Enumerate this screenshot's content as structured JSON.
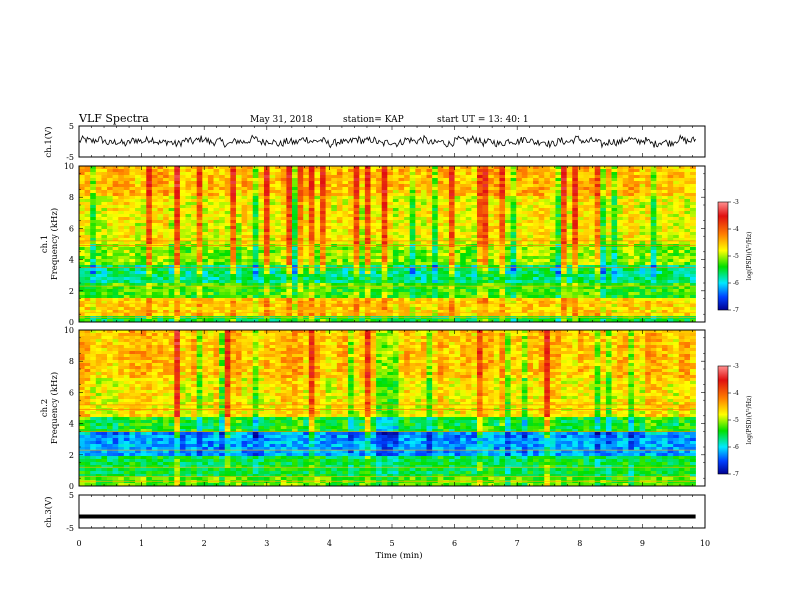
{
  "header": {
    "title": "VLF Spectra",
    "date": "May 31, 2018",
    "station": "station= KAP",
    "start": "start  UT =   13: 40: 1"
  },
  "panels": {
    "ch1_wave": {
      "ylabel": "ch.1(V)",
      "ticks": [
        "5",
        "-5"
      ]
    },
    "ch1_spec": {
      "ylabel_top": "ch.1",
      "ylabel": "Frequency (kHz)",
      "ticks": [
        "10",
        "8",
        "6",
        "4",
        "2",
        "0"
      ]
    },
    "ch2_spec": {
      "ylabel_top": "ch.2",
      "ylabel": "Frequency (kHz)",
      "ticks": [
        "10",
        "8",
        "6",
        "4",
        "2",
        "0"
      ]
    },
    "ch3_wave": {
      "ylabel": "ch.3(V)",
      "ticks": [
        "5",
        "-5"
      ]
    }
  },
  "xaxis": {
    "label": "Time (min)",
    "ticks": [
      "0",
      "1",
      "2",
      "3",
      "4",
      "5",
      "6",
      "7",
      "8",
      "9",
      "10"
    ]
  },
  "colorbar": {
    "label": "log(PSD)(V²/Hz)",
    "ticks": [
      "-3",
      "-4",
      "-5",
      "-6",
      "-7"
    ],
    "colors": [
      "#ff9090",
      "#e01010",
      "#ff8000",
      "#ffff00",
      "#00e000",
      "#00e8ff",
      "#0040ff",
      "#000090"
    ]
  },
  "chart_data": [
    {
      "type": "line",
      "title": "VLF Spectra",
      "ylabel": "ch.1(V)",
      "xlabel": "Time (min)",
      "xlim": [
        0,
        10
      ],
      "ylim": [
        -5,
        5
      ],
      "series": [
        {
          "x_range": [
            0,
            9.85
          ],
          "mean": 0,
          "approx_amplitude": 1.5
        }
      ]
    },
    {
      "type": "heatmap",
      "ylabel": "Frequency (kHz)",
      "xlim": [
        0,
        10
      ],
      "ylim": [
        0,
        10
      ],
      "clim": [
        -7,
        -3
      ],
      "data_x_range": [
        0,
        9.85
      ],
      "freq_bands_khz": [
        {
          "range": [
            8,
            10
          ],
          "log_psd": -4.5
        },
        {
          "range": [
            5,
            8
          ],
          "log_psd": -4.8
        },
        {
          "range": [
            3.6,
            5
          ],
          "log_psd": -5.1
        },
        {
          "range": [
            2.5,
            3.6
          ],
          "log_psd": -5.7
        },
        {
          "range": [
            1.5,
            2.5
          ],
          "log_psd": -5.3
        },
        {
          "range": [
            0.3,
            1.5
          ],
          "log_psd": -4.6
        },
        {
          "range": [
            0,
            0.3
          ],
          "log_psd": -5.5
        }
      ]
    },
    {
      "type": "heatmap",
      "ylabel": "Frequency (kHz)",
      "xlim": [
        0,
        10
      ],
      "ylim": [
        0,
        10
      ],
      "clim": [
        -7,
        -3
      ],
      "data_x_range": [
        0,
        9.85
      ],
      "freq_bands_khz": [
        {
          "range": [
            7,
            10
          ],
          "log_psd": -4.5
        },
        {
          "range": [
            4.5,
            7
          ],
          "log_psd": -4.7
        },
        {
          "range": [
            3.5,
            4.5
          ],
          "log_psd": -5.4
        },
        {
          "range": [
            2,
            3.5
          ],
          "log_psd": -6.2
        },
        {
          "range": [
            0.5,
            2
          ],
          "log_psd": -5.5
        },
        {
          "range": [
            0,
            0.5
          ],
          "log_psd": -5.2
        }
      ]
    },
    {
      "type": "line",
      "ylabel": "ch.3(V)",
      "xlabel": "Time (min)",
      "xlim": [
        0,
        10
      ],
      "ylim": [
        -5,
        5
      ],
      "series": [
        {
          "x_range": [
            0,
            9.85
          ],
          "value": -1.5
        }
      ]
    }
  ]
}
